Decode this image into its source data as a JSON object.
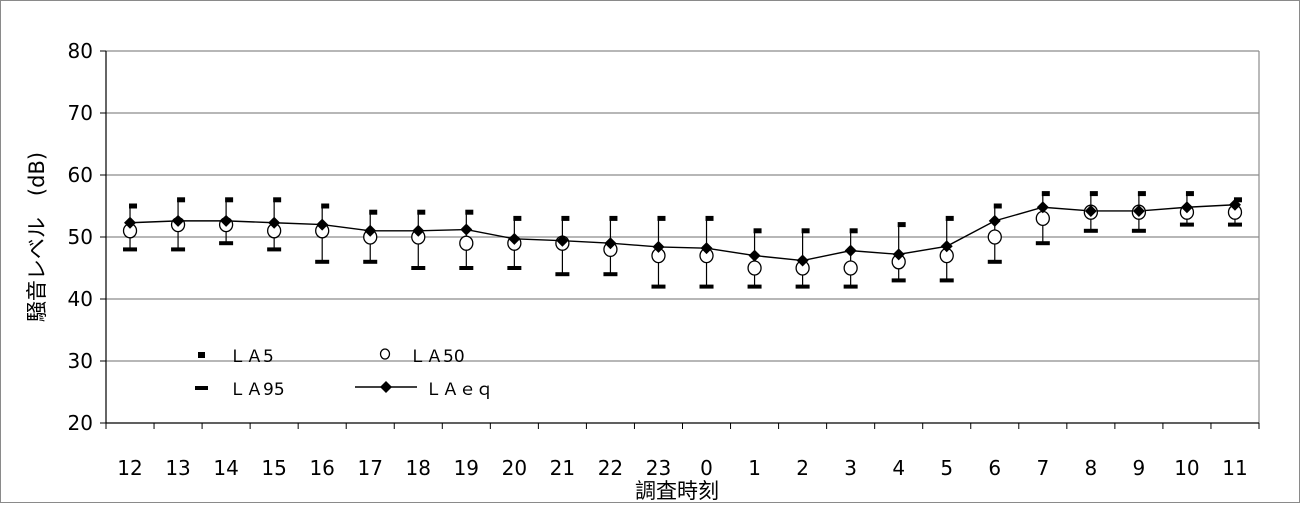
{
  "chart_data": {
    "type": "line",
    "title": "",
    "xlabel": "調査時刻",
    "ylabel": "騒音レベル　(dB)",
    "ylim": [
      20,
      80
    ],
    "yticks": [
      20,
      30,
      40,
      50,
      60,
      70,
      80
    ],
    "grid": true,
    "legend_position": "bottom-left",
    "categories": [
      "12",
      "13",
      "14",
      "15",
      "16",
      "17",
      "18",
      "19",
      "20",
      "21",
      "22",
      "23",
      "0",
      "1",
      "2",
      "3",
      "4",
      "5",
      "6",
      "7",
      "8",
      "9",
      "10",
      "11"
    ],
    "series": [
      {
        "name": "ＬＡ5",
        "marker": "small-square",
        "values": [
          55,
          56,
          56,
          56,
          55,
          54,
          54,
          54,
          53,
          53,
          53,
          53,
          53,
          51,
          51,
          51,
          52,
          53,
          55,
          57,
          57,
          57,
          57,
          56
        ]
      },
      {
        "name": "ＬＡ50",
        "marker": "open-circle",
        "values": [
          51,
          52,
          52,
          51,
          51,
          50,
          50,
          49,
          49,
          49,
          48,
          47,
          47,
          45,
          45,
          45,
          46,
          47,
          50,
          53,
          54,
          54,
          54,
          54
        ]
      },
      {
        "name": "ＬＡ95",
        "marker": "dash",
        "values": [
          48,
          48,
          49,
          48,
          46,
          46,
          45,
          45,
          45,
          44,
          44,
          42,
          42,
          42,
          42,
          42,
          43,
          43,
          46,
          49,
          51,
          51,
          52,
          52
        ]
      },
      {
        "name": "ＬＡｅｑ",
        "marker": "filled-diamond",
        "values": [
          52.3,
          52.6,
          52.6,
          52.3,
          52.0,
          51.0,
          51.0,
          51.2,
          49.7,
          49.4,
          49.0,
          48.4,
          48.2,
          47.0,
          46.2,
          47.8,
          47.2,
          48.5,
          52.6,
          54.8,
          54.2,
          54.2,
          54.8,
          55.2
        ]
      }
    ]
  }
}
